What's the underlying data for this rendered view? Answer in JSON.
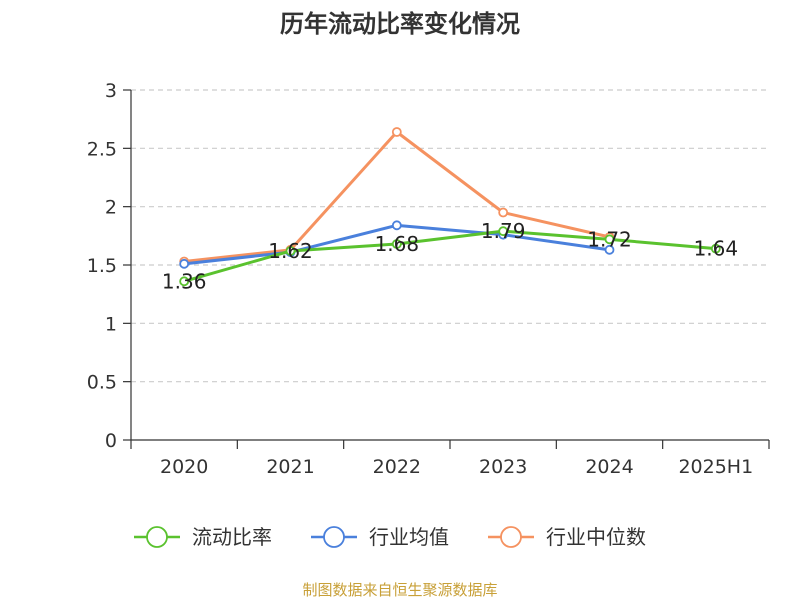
{
  "chart_data": {
    "type": "line",
    "title": "历年流动比率变化情况",
    "categories": [
      "2020",
      "2021",
      "2022",
      "2023",
      "2024",
      "2025H1"
    ],
    "yticks": [
      "0",
      "0.5",
      "1",
      "1.5",
      "2",
      "2.5",
      "3"
    ],
    "ylim": [
      0,
      3
    ],
    "grid": true,
    "legend_position": "bottom",
    "series": [
      {
        "name": "流动比率",
        "color": "#5ac22e",
        "values": [
          1.36,
          1.62,
          1.68,
          1.79,
          1.72,
          1.64
        ],
        "labels": [
          "1.36",
          "1.62",
          "1.68",
          "1.79",
          "1.72",
          "1.64"
        ]
      },
      {
        "name": "行业均值",
        "color": "#4a80dc",
        "values": [
          1.51,
          1.61,
          1.84,
          1.76,
          1.63,
          null
        ]
      },
      {
        "name": "行业中位数",
        "color": "#f59260",
        "values": [
          1.53,
          1.63,
          2.64,
          1.95,
          1.74,
          null
        ]
      }
    ],
    "source": "制图数据来自恒生聚源数据库",
    "source_color": "#c8a038"
  }
}
